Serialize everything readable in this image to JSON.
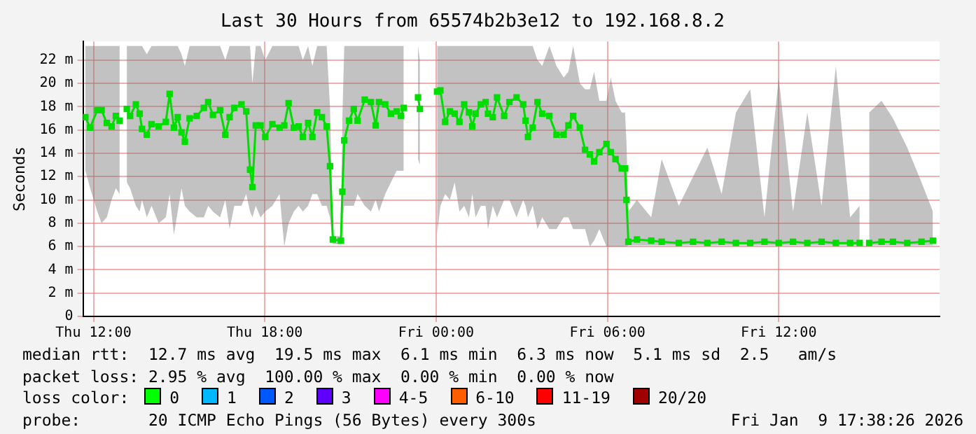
{
  "chart_data": {
    "type": "line",
    "title": "Last 30 Hours from 65574b2b3e12 to 192.168.8.2",
    "ylabel": "Seconds",
    "xlim": [
      "2026-01-08T11:38",
      "2026-01-09T17:38"
    ],
    "xticks": [
      {
        "value": "2026-01-08T12:00",
        "label": "Thu 12:00"
      },
      {
        "value": "2026-01-08T18:00",
        "label": "Thu 18:00"
      },
      {
        "value": "2026-01-09T00:00",
        "label": "Fri 00:00"
      },
      {
        "value": "2026-01-09T06:00",
        "label": "Fri 06:00"
      },
      {
        "value": "2026-01-09T12:00",
        "label": "Fri 12:00"
      }
    ],
    "ylim": [
      0,
      23.6
    ],
    "yticks": [
      0,
      {
        "value": 2,
        "label": "2 m"
      },
      {
        "value": 4,
        "label": "4 m"
      },
      {
        "value": 6,
        "label": "6 m"
      },
      {
        "value": 8,
        "label": "8 m"
      },
      {
        "value": 10,
        "label": "10 m"
      },
      {
        "value": 12,
        "label": "12 m"
      },
      {
        "value": 14,
        "label": "14 m"
      },
      {
        "value": 16,
        "label": "16 m"
      },
      {
        "value": 18,
        "label": "18 m"
      },
      {
        "value": 20,
        "label": "20 m"
      },
      {
        "value": 22,
        "label": "22 m"
      }
    ],
    "grid": true,
    "legend": false,
    "marker": "square",
    "line_style": "solid",
    "series": [
      {
        "color": "#00dd00",
        "x": [
          "2026-01-08T11:43",
          "2026-01-08T11:53",
          "2026-01-08T12:08",
          "2026-01-08T12:17",
          "2026-01-08T12:28",
          "2026-01-08T12:38",
          "2026-01-08T12:47",
          "2026-01-08T12:55",
          "2026-01-08T13:00",
          "2026-01-08T13:10",
          "2026-01-08T13:17",
          "2026-01-08T13:29",
          "2026-01-08T13:37",
          "2026-01-08T13:42",
          "2026-01-08T13:52",
          "2026-01-08T14:02",
          "2026-01-08T14:17",
          "2026-01-08T14:32",
          "2026-01-08T14:40",
          "2026-01-08T14:49",
          "2026-01-08T14:57",
          "2026-01-08T15:05",
          "2026-01-08T15:12",
          "2026-01-08T15:22",
          "2026-01-08T15:37",
          "2026-01-08T15:52",
          "2026-01-08T16:01",
          "2026-01-08T16:11",
          "2026-01-08T16:26",
          "2026-01-08T16:37",
          "2026-01-08T16:46",
          "2026-01-08T16:56",
          "2026-01-08T17:11",
          "2026-01-08T17:21",
          "2026-01-08T17:29",
          "2026-01-08T17:34",
          "2026-01-08T17:41",
          "2026-01-08T17:51",
          "2026-01-08T18:01",
          "2026-01-08T18:16",
          "2026-01-08T18:31",
          "2026-01-08T18:41",
          "2026-01-08T18:50",
          "2026-01-08T19:01",
          "2026-01-08T19:11",
          "2026-01-08T19:20",
          "2026-01-08T19:31",
          "2026-01-08T19:40",
          "2026-01-08T19:50",
          "2026-01-08T20:00",
          "2026-01-08T20:10",
          "2026-01-08T20:17",
          "2026-01-08T20:23",
          "2026-01-08T20:40",
          "2026-01-08T20:43",
          "2026-01-08T20:47",
          "2026-01-08T20:57",
          "2026-01-08T21:07",
          "2026-01-08T21:15",
          "2026-01-08T21:30",
          "2026-01-08T21:43",
          "2026-01-08T21:53",
          "2026-01-08T22:00",
          "2026-01-08T22:13",
          "2026-01-08T22:25",
          "2026-01-08T22:37",
          "2026-01-08T22:46",
          "2026-01-08T22:52",
          "2026-01-08T23:12",
          "2026-01-08T23:22",
          "2026-01-08T23:26",
          "2026-01-08T23:48",
          "2026-01-09T00:02",
          "2026-01-09T00:09",
          "2026-01-09T00:19",
          "2026-01-09T00:29",
          "2026-01-09T00:39",
          "2026-01-09T00:49",
          "2026-01-09T00:59",
          "2026-01-09T01:09",
          "2026-01-09T01:16",
          "2026-01-09T01:23",
          "2026-01-09T01:34",
          "2026-01-09T01:44",
          "2026-01-09T01:49",
          "2026-01-09T01:59",
          "2026-01-09T02:08",
          "2026-01-09T02:23",
          "2026-01-09T02:34",
          "2026-01-09T02:49",
          "2026-01-09T03:03",
          "2026-01-09T03:08",
          "2026-01-09T03:13",
          "2026-01-09T03:23",
          "2026-01-09T03:33",
          "2026-01-09T03:43",
          "2026-01-09T03:58",
          "2026-01-09T04:13",
          "2026-01-09T04:28",
          "2026-01-09T04:38",
          "2026-01-09T04:48",
          "2026-01-09T05:02",
          "2026-01-09T05:13",
          "2026-01-09T05:23",
          "2026-01-09T05:32",
          "2026-01-09T05:43",
          "2026-01-09T05:58",
          "2026-01-09T06:07",
          "2026-01-09T06:17",
          "2026-01-09T06:30",
          "2026-01-09T06:37",
          "2026-01-09T06:40",
          "2026-01-09T06:44",
          "2026-01-09T07:02",
          "2026-01-09T07:32",
          "2026-01-09T07:54",
          "2026-01-09T08:30",
          "2026-01-09T09:00",
          "2026-01-09T09:30",
          "2026-01-09T10:00",
          "2026-01-09T10:30",
          "2026-01-09T11:00",
          "2026-01-09T11:30",
          "2026-01-09T12:00",
          "2026-01-09T12:30",
          "2026-01-09T13:00",
          "2026-01-09T13:30",
          "2026-01-09T14:00",
          "2026-01-09T14:30",
          "2026-01-09T14:50",
          "2026-01-09T15:00",
          "2026-01-09T15:10",
          "2026-01-09T15:36",
          "2026-01-09T16:00",
          "2026-01-09T16:30",
          "2026-01-09T17:00",
          "2026-01-09T17:24"
        ],
        "values": [
          17.1,
          16.2,
          17.7,
          17.7,
          16.6,
          16.3,
          17.2,
          16.8,
          null,
          17.8,
          17.2,
          18.2,
          17.4,
          16.1,
          15.6,
          16.5,
          16.3,
          16.7,
          19.1,
          16.2,
          17.1,
          15.8,
          15.0,
          17.0,
          17.2,
          17.9,
          18.4,
          17.3,
          17.7,
          15.6,
          17.1,
          17.9,
          18.2,
          17.6,
          12.6,
          11.1,
          16.4,
          16.4,
          15.4,
          16.5,
          16.2,
          16.4,
          18.3,
          16.2,
          16.3,
          15.4,
          16.6,
          15.4,
          17.5,
          17.1,
          16.3,
          12.9,
          6.6,
          6.5,
          10.7,
          15.1,
          16.8,
          17.8,
          16.8,
          18.6,
          18.4,
          16.4,
          18.4,
          18.2,
          17.4,
          17.6,
          17.2,
          17.9,
          null,
          18.8,
          17.8,
          null,
          19.3,
          19.4,
          16.7,
          17.6,
          17.4,
          16.7,
          18.2,
          17.5,
          16.3,
          17.4,
          18.2,
          18.4,
          17.4,
          17.1,
          18.8,
          17.2,
          18.4,
          18.8,
          18.2,
          16.8,
          15.4,
          16.2,
          18.4,
          17.4,
          17.2,
          15.6,
          15.6,
          16.4,
          17.2,
          16.2,
          14.3,
          13.9,
          13.3,
          14.1,
          14.8,
          14.1,
          13.5,
          12.7,
          12.7,
          10.0,
          6.4,
          6.6,
          6.5,
          6.4,
          6.3,
          6.4,
          6.3,
          6.4,
          6.3,
          6.3,
          6.4,
          6.3,
          6.4,
          6.3,
          6.4,
          6.3,
          6.3,
          6.3,
          null,
          6.3,
          6.4,
          6.4,
          6.3,
          6.4,
          6.5
        ],
        "lower": [
          12.5,
          11,
          9,
          8,
          8.5,
          10,
          11,
          10.5,
          null,
          11.5,
          11,
          9.5,
          9,
          10,
          8.5,
          9.5,
          8,
          8.5,
          10.5,
          7,
          9,
          11,
          9.5,
          9,
          8.5,
          8.5,
          9.5,
          9,
          8.5,
          10,
          7.5,
          9.5,
          9.5,
          10.5,
          9,
          8.5,
          9.5,
          8.5,
          9,
          9.5,
          10.5,
          6,
          8,
          9,
          9.5,
          9,
          9.5,
          10.5,
          10.5,
          9.5,
          9.5,
          8.5,
          6.2,
          6.2,
          8,
          9.5,
          9.5,
          9.5,
          10.5,
          9.5,
          9,
          10,
          9,
          10.5,
          11.5,
          12.5,
          12.5,
          12.5,
          null,
          13.5,
          13,
          null,
          7,
          9.5,
          10.5,
          10,
          11.5,
          9,
          9.5,
          8.5,
          10.5,
          8.5,
          9.5,
          9.5,
          7.5,
          9.5,
          8.5,
          10,
          10,
          8.5,
          10,
          9.5,
          8.5,
          9.5,
          7.5,
          8.5,
          7.5,
          7.5,
          8.5,
          8.5,
          7.5,
          7.5,
          7.5,
          6,
          6.5,
          7.5,
          6,
          6,
          6,
          6,
          6,
          6,
          6.1,
          6.1,
          6.1,
          6.1,
          6.1,
          6.1,
          6.1,
          6.1,
          6.1,
          6.1,
          6.1,
          6.1,
          6.1,
          6.1,
          6.1,
          6.1,
          6.1,
          6.1,
          null,
          6.1,
          6.1,
          6.1,
          6.1,
          6.1,
          6.1
        ],
        "upper": [
          23.2,
          23.2,
          23.2,
          23.2,
          23.2,
          23.2,
          23.2,
          23.2,
          null,
          23.2,
          23.2,
          23.2,
          23.2,
          23.2,
          22.5,
          23.2,
          23.2,
          23.2,
          23.2,
          23.2,
          23.2,
          22.5,
          21.5,
          23.2,
          23.2,
          23.2,
          23.2,
          23.2,
          23.2,
          22,
          23.2,
          23.2,
          23.2,
          23.2,
          23.2,
          20,
          23.2,
          23.2,
          22,
          23.2,
          23.2,
          23.2,
          23.2,
          23.2,
          23.2,
          22,
          23.2,
          21.5,
          23.2,
          23.2,
          23.2,
          18,
          6.9,
          6.9,
          17,
          23.2,
          23.2,
          23.2,
          23.2,
          23.2,
          23.2,
          23.2,
          23.2,
          23.2,
          23.2,
          23.2,
          23.2,
          23.2,
          null,
          23.2,
          22,
          null,
          23.2,
          23.2,
          23.2,
          23.2,
          23.2,
          23.2,
          23.2,
          23.2,
          23.2,
          23.2,
          23.2,
          23.2,
          23.2,
          23.2,
          23.2,
          23.2,
          23.2,
          23.2,
          23.2,
          23.2,
          23.2,
          23.2,
          22,
          21.5,
          23.2,
          21.5,
          20.5,
          21,
          23.2,
          20,
          19.5,
          19.5,
          21,
          18.5,
          18.5,
          20.5,
          18.5,
          17.5,
          17.5,
          15,
          9,
          10,
          8.5,
          13.5,
          9.5,
          12,
          14.5,
          10.5,
          17.5,
          19.5,
          8.5,
          20.5,
          9,
          17.5,
          9.5,
          21.5,
          8.5,
          9.5,
          null,
          17.5,
          18.5,
          17,
          14.5,
          11.5,
          9
        ]
      }
    ],
    "annotations": [
      "median rtt:  12.7 ms avg  19.5 ms max  6.1 ms min  6.3 ms now  5.1 ms sd  2.5   am/s",
      "packet loss: 2.95 % avg  100.00 % max  0.00 % min  0.00 % now",
      "loss color:",
      "0",
      "1",
      "2",
      "3",
      "4-5",
      "6-10",
      "11-19",
      "20/20",
      "probe:       20 ICMP Echo Pings (56 Bytes) every 300s",
      "Fri Jan  9 17:38:26 2026"
    ]
  }
}
